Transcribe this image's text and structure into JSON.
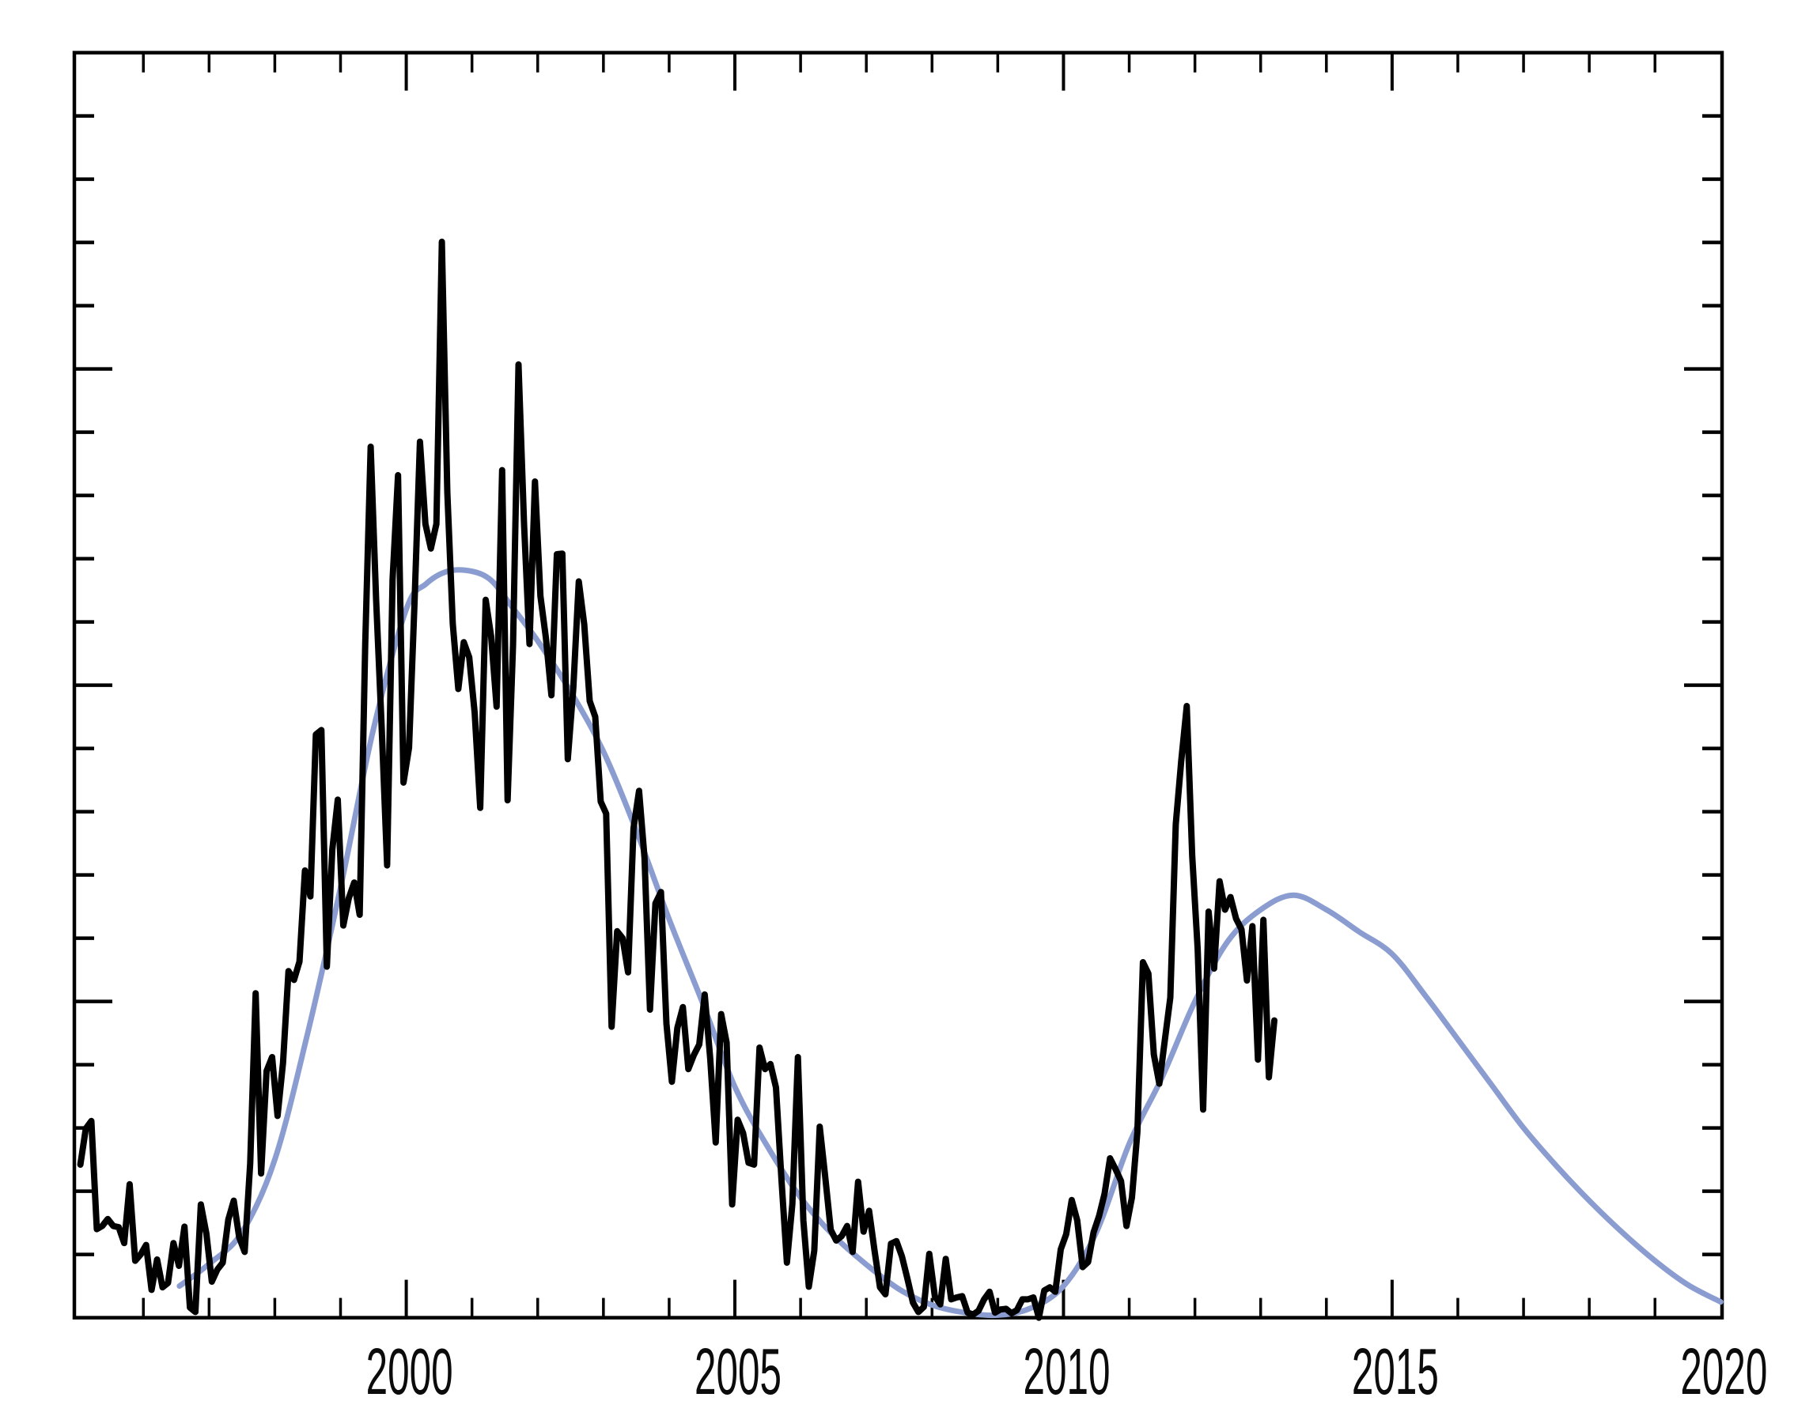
{
  "figure": {
    "background": "#ffffff",
    "frame_color": "#000000"
  },
  "chart_data": {
    "type": "line",
    "title": "",
    "xlabel": "",
    "ylabel": "",
    "grid": false,
    "legend": "none",
    "x_axis": {
      "min": 1994.95,
      "max": 2020.02,
      "major_ticks": [
        2000,
        2005,
        2010,
        2015,
        2020
      ],
      "tick_labels": [
        "2000",
        "2005",
        "2010",
        "2015",
        "2020"
      ],
      "minor_tick_step": 1,
      "minor_tick_start": 1996,
      "minor_tick_end": 2019
    },
    "y_axis": {
      "min": 0,
      "max": 200,
      "major_tick_step": 50,
      "minor_tick_step": 10,
      "labels_shown": false
    },
    "series": [
      {
        "name": "monthly-observed",
        "style": "jagged-polyline",
        "color": "#000000",
        "stroke_width": 8,
        "start_year": 1995,
        "start_month": 1,
        "cadence": "monthly",
        "values": [
          24.2,
          29.9,
          31.1,
          14.0,
          14.5,
          15.6,
          14.5,
          14.3,
          11.8,
          21.1,
          9.0,
          10.0,
          11.5,
          4.4,
          9.2,
          4.8,
          5.5,
          11.8,
          8.2,
          14.4,
          1.6,
          0.9,
          17.9,
          13.3,
          5.7,
          7.6,
          8.7,
          15.5,
          18.5,
          12.7,
          10.4,
          24.4,
          51.3,
          22.8,
          39.0,
          41.2,
          31.9,
          40.3,
          54.8,
          53.4,
          56.3,
          70.7,
          66.6,
          92.2,
          92.9,
          55.5,
          74.0,
          81.9,
          62.0,
          66.3,
          68.8,
          63.7,
          106.4,
          137.7,
          113.5,
          93.7,
          71.5,
          116.7,
          133.2,
          84.6,
          90.1,
          112.9,
          138.5,
          125.5,
          121.6,
          125.5,
          170.1,
          130.5,
          109.7,
          99.4,
          106.8,
          104.4,
          95.6,
          80.6,
          113.5,
          107.7,
          96.6,
          134.0,
          81.8,
          106.4,
          150.7,
          125.5,
          106.5,
          132.2,
          114.1,
          107.4,
          98.4,
          120.7,
          120.8,
          88.3,
          99.6,
          116.4,
          109.6,
          97.5,
          95.0,
          81.6,
          79.7,
          46.0,
          61.1,
          60.0,
          54.6,
          77.4,
          83.3,
          72.7,
          48.7,
          65.5,
          67.3,
          46.5,
          37.3,
          45.8,
          49.1,
          39.3,
          41.5,
          43.2,
          51.1,
          40.9,
          27.7,
          48.0,
          43.5,
          17.9,
          31.3,
          29.2,
          24.5,
          24.2,
          42.7,
          39.3,
          40.1,
          36.4,
          21.9,
          8.7,
          18.0,
          41.2,
          15.4,
          4.9,
          10.6,
          30.2,
          22.2,
          13.9,
          12.2,
          12.9,
          14.5,
          10.4,
          21.5,
          13.6,
          16.9,
          10.6,
          4.8,
          3.7,
          11.7,
          12.1,
          9.7,
          6.2,
          2.4,
          0.9,
          1.7,
          10.1,
          3.4,
          2.1,
          9.3,
          2.9,
          3.2,
          3.4,
          0.8,
          0.5,
          1.1,
          2.9,
          4.1,
          0.8,
          1.3,
          1.4,
          0.7,
          1.2,
          2.9,
          2.9,
          3.2,
          0.0,
          4.3,
          4.8,
          4.1,
          10.8,
          13.2,
          18.6,
          15.4,
          8.0,
          8.8,
          13.5,
          16.1,
          19.6,
          25.2,
          23.5,
          21.6,
          14.5,
          19.0,
          29.4,
          56.2,
          54.4,
          41.6,
          37.0,
          43.9,
          50.6,
          78.0,
          88.0,
          96.7,
          73.0,
          58.3,
          32.9,
          64.2,
          55.2,
          69.0,
          64.5,
          66.5,
          63.1,
          61.4,
          53.3,
          61.9,
          40.8,
          62.9,
          38.0,
          47.0
        ]
      },
      {
        "name": "smoothed-prediction",
        "style": "smooth-curve",
        "color": "#8B9DD0",
        "stroke_width": 7,
        "points": [
          [
            1996.55,
            5.0
          ],
          [
            1997.0,
            8.5
          ],
          [
            1997.5,
            13.5
          ],
          [
            1998.0,
            25.0
          ],
          [
            1998.5,
            45.0
          ],
          [
            1999.0,
            68.0
          ],
          [
            1999.5,
            93.0
          ],
          [
            2000.0,
            112.0
          ],
          [
            2000.3,
            116.0
          ],
          [
            2000.63,
            118.0
          ],
          [
            2001.0,
            118.0
          ],
          [
            2001.3,
            116.5
          ],
          [
            2001.6,
            112.5
          ],
          [
            2002.0,
            107.0
          ],
          [
            2002.5,
            99.0
          ],
          [
            2003.0,
            89.5
          ],
          [
            2003.5,
            77.0
          ],
          [
            2004.0,
            63.0
          ],
          [
            2004.5,
            50.0
          ],
          [
            2005.0,
            36.5
          ],
          [
            2005.5,
            27.0
          ],
          [
            2006.0,
            19.0
          ],
          [
            2006.5,
            13.0
          ],
          [
            2007.0,
            8.4
          ],
          [
            2007.5,
            4.5
          ],
          [
            2008.0,
            2.0
          ],
          [
            2008.5,
            0.8
          ],
          [
            2009.0,
            0.4
          ],
          [
            2009.5,
            1.5
          ],
          [
            2010.0,
            5.0
          ],
          [
            2010.5,
            13.5
          ],
          [
            2011.0,
            27.5
          ],
          [
            2011.5,
            38.0
          ],
          [
            2012.0,
            50.0
          ],
          [
            2012.5,
            59.5
          ],
          [
            2013.0,
            64.5
          ],
          [
            2013.5,
            66.8
          ],
          [
            2014.0,
            64.5
          ],
          [
            2014.5,
            61.0
          ],
          [
            2015.0,
            57.5
          ],
          [
            2015.5,
            51.0
          ],
          [
            2016.0,
            44.0
          ],
          [
            2016.5,
            37.0
          ],
          [
            2017.0,
            30.0
          ],
          [
            2017.5,
            24.0
          ],
          [
            2018.0,
            18.5
          ],
          [
            2018.5,
            13.5
          ],
          [
            2019.0,
            9.0
          ],
          [
            2019.5,
            5.2
          ],
          [
            2020.0,
            2.5
          ]
        ]
      }
    ]
  }
}
